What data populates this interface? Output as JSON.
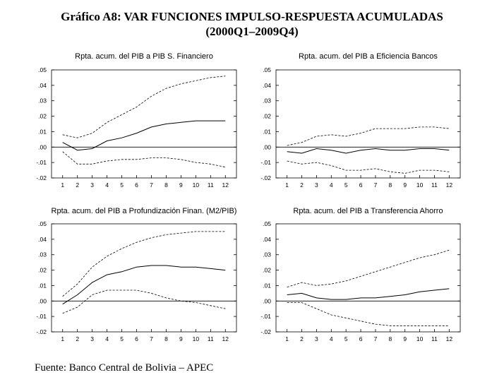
{
  "title_line1": "Gráfico A8: VAR FUNCIONES IMPULSO-RESPUESTA ACUMULADAS",
  "title_line2": "(2000Q1–2009Q4)",
  "source": "Fuente: Banco Central de Bolivia – APEC",
  "chart_data": [
    {
      "type": "line",
      "title": "Rpta. acum. del PIB a PIB S. Financiero",
      "x": [
        1,
        2,
        3,
        4,
        5,
        6,
        7,
        8,
        9,
        10,
        11,
        12
      ],
      "ylim": [
        -0.02,
        0.05
      ],
      "yticks": [
        ".05",
        ".04",
        ".03",
        ".02",
        ".01",
        ".00",
        "-.01",
        "-.02"
      ],
      "series": [
        {
          "name": "upper",
          "style": "dashed",
          "values": [
            0.008,
            0.006,
            0.009,
            0.016,
            0.021,
            0.026,
            0.033,
            0.038,
            0.041,
            0.043,
            0.045,
            0.046
          ]
        },
        {
          "name": "response",
          "style": "solid",
          "values": [
            0.003,
            -0.002,
            -0.001,
            0.004,
            0.006,
            0.009,
            0.013,
            0.015,
            0.016,
            0.017,
            0.017,
            0.017
          ]
        },
        {
          "name": "lower",
          "style": "dashed",
          "values": [
            -0.003,
            -0.011,
            -0.011,
            -0.009,
            -0.008,
            -0.008,
            -0.007,
            -0.007,
            -0.008,
            -0.01,
            -0.011,
            -0.013
          ]
        }
      ]
    },
    {
      "type": "line",
      "title": "Rpta. acum. del PIB a  Eficiencia Bancos",
      "x": [
        1,
        2,
        3,
        4,
        5,
        6,
        7,
        8,
        9,
        10,
        11,
        12
      ],
      "ylim": [
        -0.02,
        0.05
      ],
      "yticks": [
        ".05",
        ".04",
        ".03",
        ".02",
        ".01",
        ".00",
        "-.01",
        "-.02"
      ],
      "series": [
        {
          "name": "upper",
          "style": "dashed",
          "values": [
            0.001,
            0.003,
            0.007,
            0.008,
            0.007,
            0.009,
            0.012,
            0.012,
            0.012,
            0.013,
            0.013,
            0.012
          ]
        },
        {
          "name": "response",
          "style": "solid",
          "values": [
            -0.003,
            -0.004,
            -0.001,
            -0.002,
            -0.004,
            -0.002,
            -0.001,
            -0.002,
            -0.002,
            -0.001,
            -0.001,
            -0.002
          ]
        },
        {
          "name": "lower",
          "style": "dashed",
          "values": [
            -0.009,
            -0.011,
            -0.01,
            -0.012,
            -0.015,
            -0.015,
            -0.014,
            -0.016,
            -0.017,
            -0.015,
            -0.015,
            -0.016
          ]
        }
      ]
    },
    {
      "type": "line",
      "title": "Rpta. acum. del PIB a  Profundización Finan. (M2/PIB)",
      "x": [
        1,
        2,
        3,
        4,
        5,
        6,
        7,
        8,
        9,
        10,
        11,
        12
      ],
      "ylim": [
        -0.02,
        0.05
      ],
      "yticks": [
        ".05",
        ".04",
        ".03",
        ".02",
        ".01",
        ".00",
        "-.01",
        "-.02"
      ],
      "series": [
        {
          "name": "upper",
          "style": "dashed",
          "values": [
            0.003,
            0.011,
            0.022,
            0.029,
            0.034,
            0.038,
            0.041,
            0.043,
            0.044,
            0.045,
            0.045,
            0.045
          ]
        },
        {
          "name": "response",
          "style": "solid",
          "values": [
            -0.002,
            0.004,
            0.012,
            0.017,
            0.019,
            0.022,
            0.023,
            0.023,
            0.022,
            0.022,
            0.021,
            0.02
          ]
        },
        {
          "name": "lower",
          "style": "dashed",
          "values": [
            -0.008,
            -0.004,
            0.004,
            0.007,
            0.007,
            0.007,
            0.005,
            0.002,
            0.0,
            -0.001,
            -0.003,
            -0.005
          ]
        }
      ]
    },
    {
      "type": "line",
      "title": "Rpta. acum. del PIB a Transferencia Ahorro",
      "x": [
        1,
        2,
        3,
        4,
        5,
        6,
        7,
        8,
        9,
        10,
        11,
        12
      ],
      "ylim": [
        -0.02,
        0.05
      ],
      "yticks": [
        ".05",
        ".04",
        ".03",
        ".02",
        ".01",
        ".00",
        "-.01",
        "-.02"
      ],
      "series": [
        {
          "name": "upper",
          "style": "dashed",
          "values": [
            0.009,
            0.012,
            0.01,
            0.011,
            0.013,
            0.016,
            0.019,
            0.022,
            0.025,
            0.028,
            0.03,
            0.033
          ]
        },
        {
          "name": "response",
          "style": "solid",
          "values": [
            0.004,
            0.005,
            0.002,
            0.001,
            0.001,
            0.002,
            0.002,
            0.003,
            0.004,
            0.006,
            0.007,
            0.008
          ]
        },
        {
          "name": "lower",
          "style": "dashed",
          "values": [
            -0.001,
            -0.001,
            -0.005,
            -0.009,
            -0.011,
            -0.013,
            -0.015,
            -0.016,
            -0.016,
            -0.016,
            -0.016,
            -0.016
          ]
        }
      ]
    }
  ]
}
